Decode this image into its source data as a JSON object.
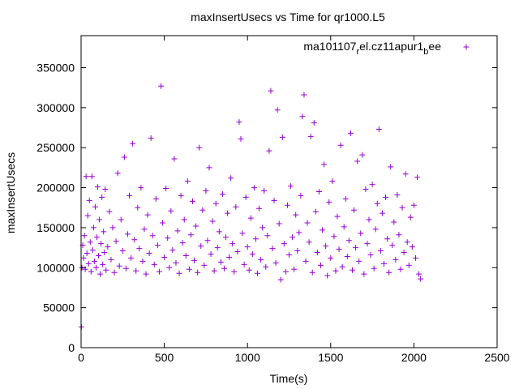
{
  "chart_data": {
    "type": "scatter",
    "title": "maxInsertUsecs vs Time for qr1000.L5",
    "xlabel": "Time(s)",
    "ylabel": "maxInsertUsecs",
    "xlim": [
      0,
      2500
    ],
    "ylim": [
      0,
      390000
    ],
    "xticks": [
      0,
      500,
      1000,
      1500,
      2000,
      2500
    ],
    "yticks": [
      0,
      50000,
      100000,
      150000,
      200000,
      250000,
      300000,
      350000
    ],
    "grid": false,
    "legend_position": "top-right",
    "marker": "plus",
    "series": [
      {
        "name": "ma101107",
        "name_subscript_1": "r",
        "name_mid": "el.cz11apur1",
        "name_subscript_2": "b",
        "name_suffix": "ee",
        "color": "#9400d3",
        "points": [
          [
            2,
            26000
          ],
          [
            5,
            100000
          ],
          [
            10,
            128000
          ],
          [
            15,
            112000
          ],
          [
            20,
            140000
          ],
          [
            25,
            98000
          ],
          [
            30,
            214000
          ],
          [
            35,
            118000
          ],
          [
            40,
            165000
          ],
          [
            45,
            105000
          ],
          [
            50,
            184000
          ],
          [
            55,
            132000
          ],
          [
            60,
            95000
          ],
          [
            65,
            214000
          ],
          [
            70,
            122000
          ],
          [
            75,
            150000
          ],
          [
            80,
            108000
          ],
          [
            85,
            176000
          ],
          [
            90,
            100000
          ],
          [
            95,
            138000
          ],
          [
            100,
            201000
          ],
          [
            105,
            115000
          ],
          [
            110,
            160000
          ],
          [
            115,
            92000
          ],
          [
            120,
            130000
          ],
          [
            125,
            188000
          ],
          [
            130,
            104000
          ],
          [
            135,
            145000
          ],
          [
            140,
            119000
          ],
          [
            145,
            198000
          ],
          [
            150,
            97000
          ],
          [
            160,
            126000
          ],
          [
            170,
            170000
          ],
          [
            180,
            110000
          ],
          [
            190,
            150000
          ],
          [
            200,
            94000
          ],
          [
            210,
            133000
          ],
          [
            220,
            218000
          ],
          [
            230,
            102000
          ],
          [
            240,
            160000
          ],
          [
            250,
            121000
          ],
          [
            260,
            238000
          ],
          [
            270,
            99000
          ],
          [
            280,
            142000
          ],
          [
            290,
            190000
          ],
          [
            300,
            112000
          ],
          [
            310,
            255000
          ],
          [
            320,
            135000
          ],
          [
            330,
            96000
          ],
          [
            340,
            175000
          ],
          [
            350,
            124000
          ],
          [
            360,
            200000
          ],
          [
            370,
            108000
          ],
          [
            380,
            148000
          ],
          [
            390,
            92000
          ],
          [
            400,
            166000
          ],
          [
            410,
            118000
          ],
          [
            420,
            262000
          ],
          [
            430,
            140000
          ],
          [
            440,
            104000
          ],
          [
            450,
            186000
          ],
          [
            460,
            128000
          ],
          [
            470,
            95000
          ],
          [
            480,
            327000
          ],
          [
            490,
            156000
          ],
          [
            500,
            113000
          ],
          [
            510,
            199000
          ],
          [
            520,
            137000
          ],
          [
            530,
            100000
          ],
          [
            540,
            171000
          ],
          [
            550,
            122000
          ],
          [
            560,
            236000
          ],
          [
            570,
            106000
          ],
          [
            580,
            146000
          ],
          [
            590,
            93000
          ],
          [
            600,
            190000
          ],
          [
            610,
            131000
          ],
          [
            620,
            160000
          ],
          [
            630,
            115000
          ],
          [
            640,
            208000
          ],
          [
            650,
            98000
          ],
          [
            660,
            141000
          ],
          [
            670,
            183000
          ],
          [
            680,
            109000
          ],
          [
            690,
            152000
          ],
          [
            700,
            94000
          ],
          [
            710,
            250000
          ],
          [
            720,
            127000
          ],
          [
            730,
            172000
          ],
          [
            740,
            103000
          ],
          [
            750,
            196000
          ],
          [
            760,
            134000
          ],
          [
            770,
            225000
          ],
          [
            780,
            117000
          ],
          [
            790,
            158000
          ],
          [
            800,
            96000
          ],
          [
            810,
            180000
          ],
          [
            820,
            125000
          ],
          [
            830,
            145000
          ],
          [
            840,
            107000
          ],
          [
            850,
            192000
          ],
          [
            860,
            99000
          ],
          [
            870,
            138000
          ],
          [
            880,
            168000
          ],
          [
            890,
            113000
          ],
          [
            900,
            212000
          ],
          [
            910,
            130000
          ],
          [
            920,
            95000
          ],
          [
            930,
            176000
          ],
          [
            940,
            120000
          ],
          [
            950,
            282000
          ],
          [
            960,
            261000
          ],
          [
            970,
            143000
          ],
          [
            980,
            104000
          ],
          [
            990,
            188000
          ],
          [
            1000,
            126000
          ],
          [
            1010,
            97000
          ],
          [
            1020,
            162000
          ],
          [
            1030,
            117000
          ],
          [
            1040,
            200000
          ],
          [
            1050,
            136000
          ],
          [
            1060,
            93000
          ],
          [
            1070,
            174000
          ],
          [
            1080,
            110000
          ],
          [
            1090,
            150000
          ],
          [
            1100,
            196000
          ],
          [
            1110,
            101000
          ],
          [
            1120,
            140000
          ],
          [
            1130,
            246000
          ],
          [
            1140,
            321000
          ],
          [
            1150,
            124000
          ],
          [
            1160,
            184000
          ],
          [
            1170,
            106000
          ],
          [
            1180,
            297000
          ],
          [
            1190,
            155000
          ],
          [
            1200,
            85000
          ],
          [
            1210,
            263000
          ],
          [
            1220,
            130000
          ],
          [
            1230,
            95000
          ],
          [
            1240,
            178000
          ],
          [
            1250,
            116000
          ],
          [
            1260,
            202000
          ],
          [
            1270,
            138000
          ],
          [
            1280,
            98000
          ],
          [
            1290,
            166000
          ],
          [
            1300,
            121000
          ],
          [
            1310,
            144000
          ],
          [
            1320,
            190000
          ],
          [
            1330,
            289000
          ],
          [
            1340,
            316000
          ],
          [
            1350,
            108000
          ],
          [
            1360,
            156000
          ],
          [
            1370,
            132000
          ],
          [
            1380,
            264000
          ],
          [
            1390,
            94000
          ],
          [
            1400,
            281000
          ],
          [
            1410,
            170000
          ],
          [
            1420,
            119000
          ],
          [
            1430,
            195000
          ],
          [
            1440,
            103000
          ],
          [
            1450,
            147000
          ],
          [
            1460,
            229000
          ],
          [
            1470,
            127000
          ],
          [
            1480,
            90000
          ],
          [
            1490,
            182000
          ],
          [
            1500,
            112000
          ],
          [
            1510,
            208000
          ],
          [
            1520,
            139000
          ],
          [
            1530,
            96000
          ],
          [
            1540,
            164000
          ],
          [
            1550,
            123000
          ],
          [
            1560,
            253000
          ],
          [
            1570,
            101000
          ],
          [
            1580,
            151000
          ],
          [
            1590,
            186000
          ],
          [
            1600,
            114000
          ],
          [
            1610,
            134000
          ],
          [
            1620,
            268000
          ],
          [
            1630,
            97000
          ],
          [
            1640,
            172000
          ],
          [
            1650,
            125000
          ],
          [
            1660,
            233000
          ],
          [
            1670,
            108000
          ],
          [
            1680,
            143000
          ],
          [
            1690,
            241000
          ],
          [
            1700,
            92000
          ],
          [
            1710,
            198000
          ],
          [
            1720,
            130000
          ],
          [
            1730,
            160000
          ],
          [
            1740,
            116000
          ],
          [
            1750,
            204000
          ],
          [
            1760,
            99000
          ],
          [
            1770,
            148000
          ],
          [
            1780,
            180000
          ],
          [
            1790,
            273000
          ],
          [
            1800,
            121000
          ],
          [
            1810,
            168000
          ],
          [
            1820,
            105000
          ],
          [
            1830,
            188000
          ],
          [
            1840,
            136000
          ],
          [
            1850,
            94000
          ],
          [
            1860,
            226000
          ],
          [
            1870,
            128000
          ],
          [
            1880,
            157000
          ],
          [
            1890,
            110000
          ],
          [
            1900,
            191000
          ],
          [
            1910,
            141000
          ],
          [
            1920,
            98000
          ],
          [
            1930,
            175000
          ],
          [
            1940,
            119000
          ],
          [
            1950,
            217000
          ],
          [
            1960,
            132000
          ],
          [
            1970,
            103000
          ],
          [
            1980,
            163000
          ],
          [
            1990,
            126000
          ],
          [
            2000,
            178000
          ],
          [
            2010,
            112000
          ],
          [
            2020,
            213000
          ],
          [
            2030,
            92000
          ],
          [
            2040,
            86000
          ]
        ]
      }
    ]
  }
}
